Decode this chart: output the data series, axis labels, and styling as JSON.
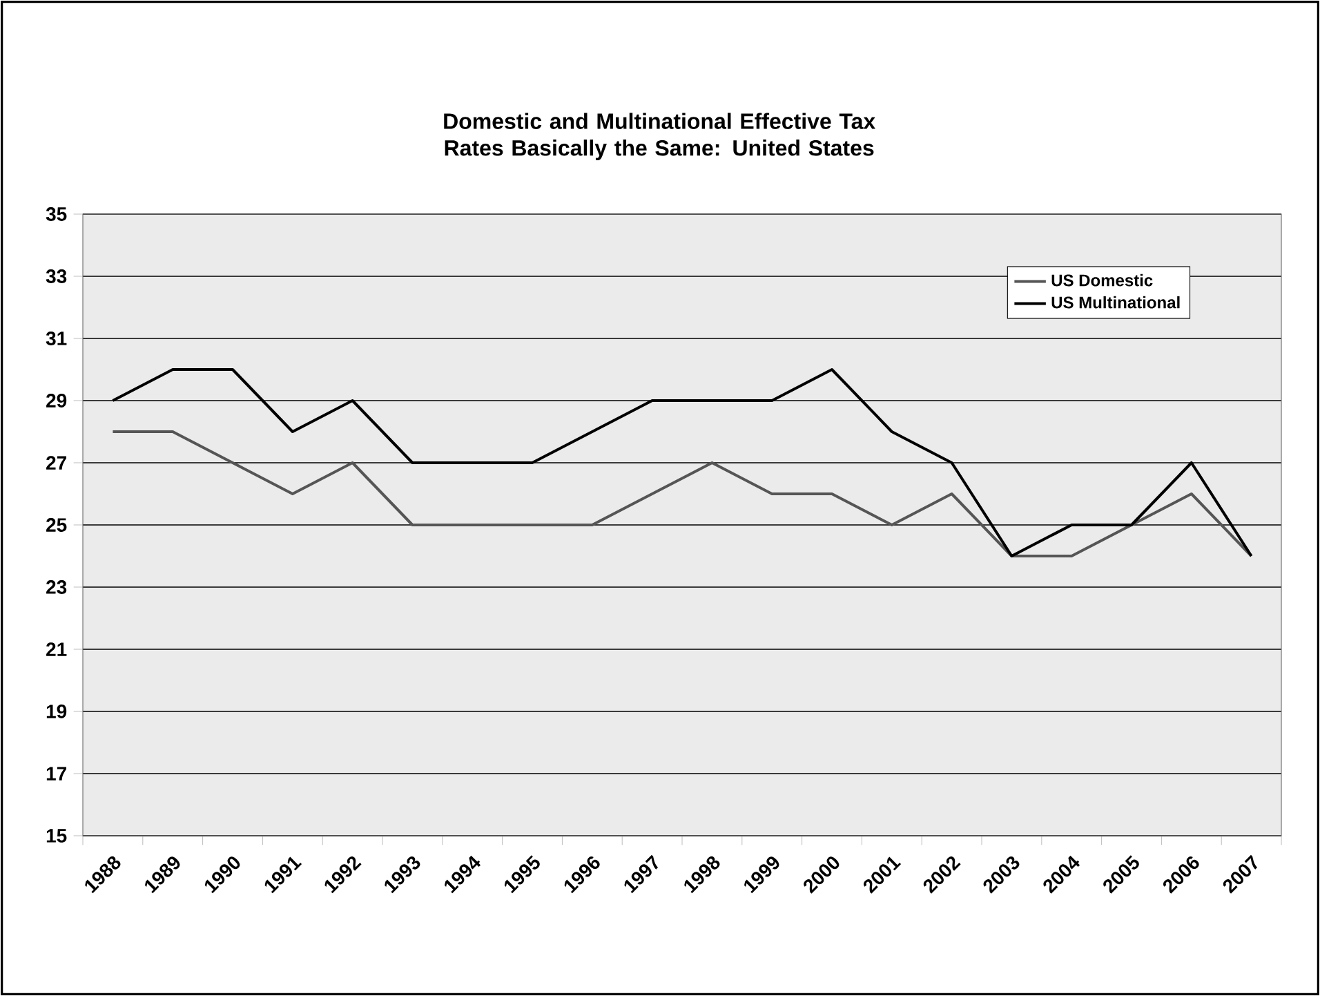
{
  "chart_data": {
    "type": "line",
    "title": "Domestic and Multinational Effective Tax Rates Basically the Same: United States",
    "categories": [
      "1988",
      "1989",
      "1990",
      "1991",
      "1992",
      "1993",
      "1994",
      "1995",
      "1996",
      "1997",
      "1998",
      "1999",
      "2000",
      "2001",
      "2002",
      "2003",
      "2004",
      "2005",
      "2006",
      "2007"
    ],
    "series": [
      {
        "name": "US Domestic",
        "color": "#555555",
        "values": [
          28,
          28,
          27,
          26,
          27,
          25,
          25,
          25,
          25,
          26,
          27,
          26,
          26,
          25,
          26,
          24,
          24,
          25,
          26,
          24
        ]
      },
      {
        "name": "US Multinational",
        "color": "#000000",
        "values": [
          29,
          30,
          30,
          28,
          29,
          27,
          27,
          27,
          28,
          29,
          29,
          29,
          30,
          28,
          27,
          24,
          25,
          25,
          27,
          24
        ]
      }
    ],
    "ylim": [
      15,
      35
    ],
    "yticks": [
      15,
      17,
      19,
      21,
      23,
      25,
      27,
      29,
      31,
      33,
      35
    ],
    "grid": "y",
    "legend": "top right",
    "marker": "none",
    "line_style": "solid"
  }
}
